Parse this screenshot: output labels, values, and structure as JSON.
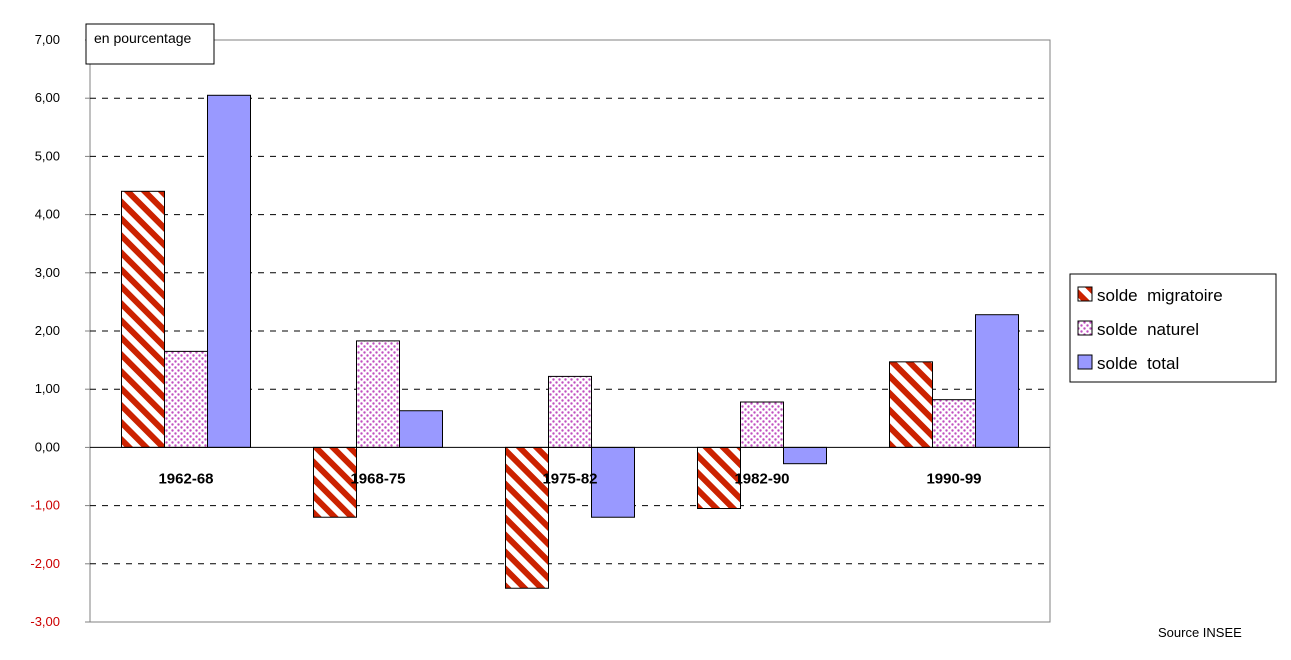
{
  "chart_data": {
    "type": "bar",
    "unit_label": "en pourcentage",
    "source": "Source INSEE",
    "categories": [
      "1962-68",
      "1968-75",
      "1975-82",
      "1982-90",
      "1990-99"
    ],
    "series": [
      {
        "name": "solde  migratoire",
        "values": [
          4.4,
          -1.2,
          -2.42,
          -1.05,
          1.47
        ],
        "pattern": "diagonal-stripes",
        "color": "#cc2200"
      },
      {
        "name": "solde  naturel",
        "values": [
          1.65,
          1.83,
          1.22,
          0.78,
          0.82
        ],
        "pattern": "dots",
        "color": "#c050c0"
      },
      {
        "name": "solde  total",
        "values": [
          6.05,
          0.63,
          -1.2,
          -0.28,
          2.28
        ],
        "pattern": "solid",
        "color": "#9999ff"
      }
    ],
    "y_ticks": [
      "7,00",
      "6,00",
      "5,00",
      "4,00",
      "3,00",
      "2,00",
      "1,00",
      "0,00",
      "-1,00",
      "-2,00",
      "-3,00"
    ],
    "ylim": [
      -3,
      7
    ],
    "grid": true,
    "legend_position": "right",
    "negative_tick_color": "#cc0000"
  }
}
